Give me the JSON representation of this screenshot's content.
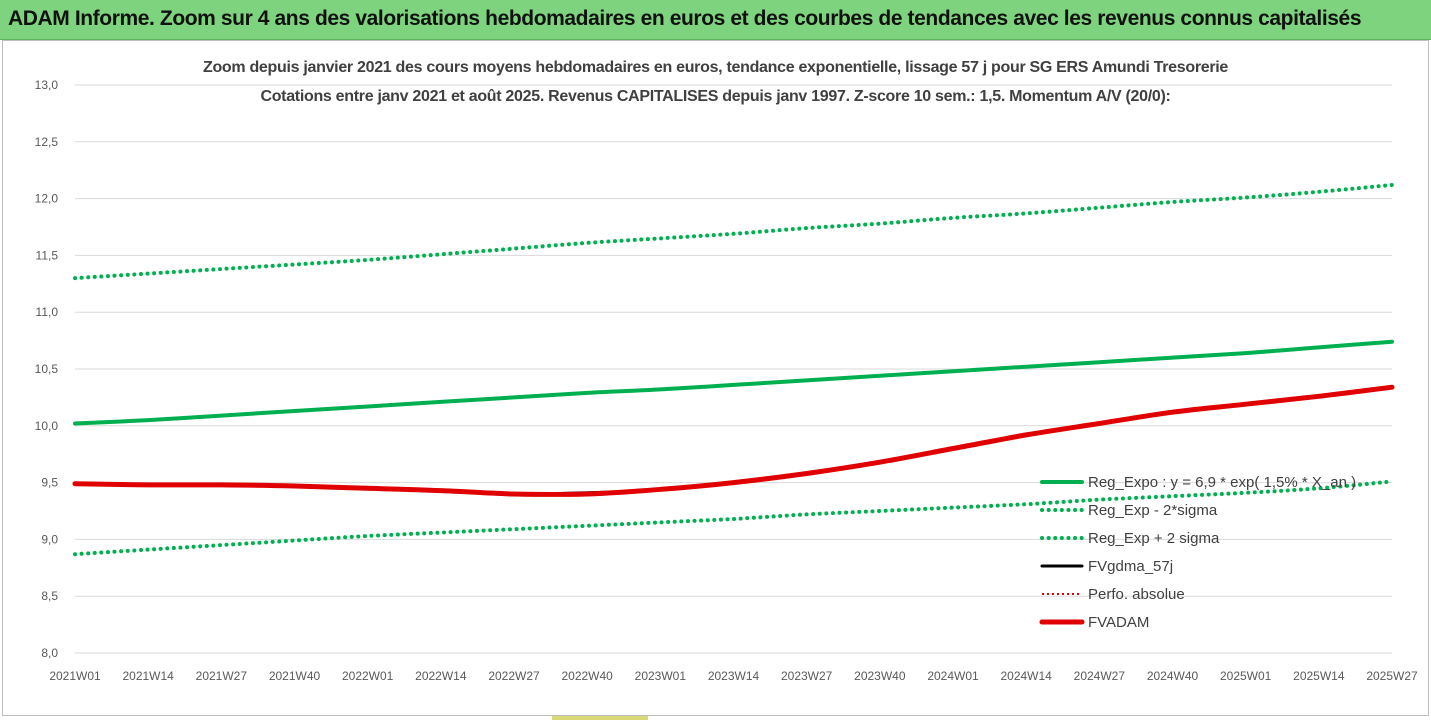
{
  "banner": {
    "title": "ADAM Informe. Zoom sur 4 ans des valorisations hebdomadaires en euros et des courbes de tendances avec les revenus connus capitalisés",
    "background_color": "#7ed47e"
  },
  "chart_data": {
    "type": "line",
    "title": "Zoom depuis janvier 2021 des cours moyens hebdomadaires en euros, tendance exponentielle, lissage 57 j pour SG ERS Amundi Tresorerie",
    "subtitle": "Cotations entre janv 2021 et août 2025. Revenus CAPITALISES depuis janv 1997. Z-score 10 sem.: 1,5. Momentum A/V (20/0):",
    "xlabel": "",
    "ylabel": "",
    "ylim": [
      8.0,
      13.0
    ],
    "y_ticks": [
      "8,0",
      "8,5",
      "9,0",
      "9,5",
      "10,0",
      "10,5",
      "11,0",
      "11,5",
      "12,0",
      "12,5",
      "13,0"
    ],
    "x_ticks": [
      "2021W01",
      "2021W14",
      "2021W27",
      "2021W40",
      "2022W01",
      "2022W14",
      "2022W27",
      "2022W40",
      "2023W01",
      "2023W14",
      "2023W27",
      "2023W40",
      "2024W01",
      "2024W14",
      "2024W27",
      "2024W40",
      "2025W01",
      "2025W14",
      "2025W27"
    ],
    "grid": "horizontal",
    "legend_position": "bottom-right",
    "series": [
      {
        "name": "Reg_Expo : y = 6,9 * exp( 1,5% * X_an )",
        "color": "#00b050",
        "style": "solid",
        "width": 4,
        "values": [
          10.02,
          10.05,
          10.09,
          10.13,
          10.17,
          10.21,
          10.25,
          10.29,
          10.32,
          10.36,
          10.4,
          10.44,
          10.48,
          10.52,
          10.56,
          10.6,
          10.64,
          10.69,
          10.74
        ]
      },
      {
        "name": "Reg_Exp - 2*sigma",
        "color": "#00b050",
        "style": "dotted",
        "width": 4,
        "values": [
          8.87,
          8.91,
          8.95,
          8.99,
          9.03,
          9.06,
          9.09,
          9.12,
          9.15,
          9.18,
          9.22,
          9.25,
          9.28,
          9.31,
          9.35,
          9.38,
          9.41,
          9.45,
          9.51
        ]
      },
      {
        "name": "Reg_Exp + 2 sigma",
        "color": "#00b050",
        "style": "dotted",
        "width": 4,
        "values": [
          11.3,
          11.34,
          11.38,
          11.42,
          11.46,
          11.51,
          11.56,
          11.61,
          11.65,
          11.69,
          11.74,
          11.78,
          11.83,
          11.87,
          11.92,
          11.97,
          12.01,
          12.06,
          12.12
        ]
      },
      {
        "name": "FVgdma_57j",
        "color": "#000000",
        "style": "solid",
        "width": 3,
        "values": [
          9.49,
          9.48,
          9.48,
          9.47,
          9.45,
          9.43,
          9.4,
          9.41,
          9.44,
          9.5,
          9.58,
          9.68,
          9.8,
          9.92,
          10.02,
          10.12,
          10.19,
          10.26,
          10.34
        ]
      },
      {
        "name": "Perfo. absolue",
        "color": "#e00000",
        "style": "dotted",
        "width": 2,
        "values": [
          9.49,
          9.48,
          9.48,
          9.47,
          9.45,
          9.43,
          9.4,
          9.4,
          9.44,
          9.5,
          9.58,
          9.68,
          9.8,
          9.92,
          10.02,
          10.12,
          10.19,
          10.26,
          10.34
        ]
      },
      {
        "name": "FVADAM",
        "color": "#e00000",
        "style": "solid",
        "width": 5,
        "values": [
          9.49,
          9.48,
          9.48,
          9.47,
          9.45,
          9.43,
          9.4,
          9.4,
          9.44,
          9.5,
          9.58,
          9.68,
          9.8,
          9.92,
          10.02,
          10.12,
          10.19,
          10.26,
          10.34
        ]
      }
    ]
  }
}
